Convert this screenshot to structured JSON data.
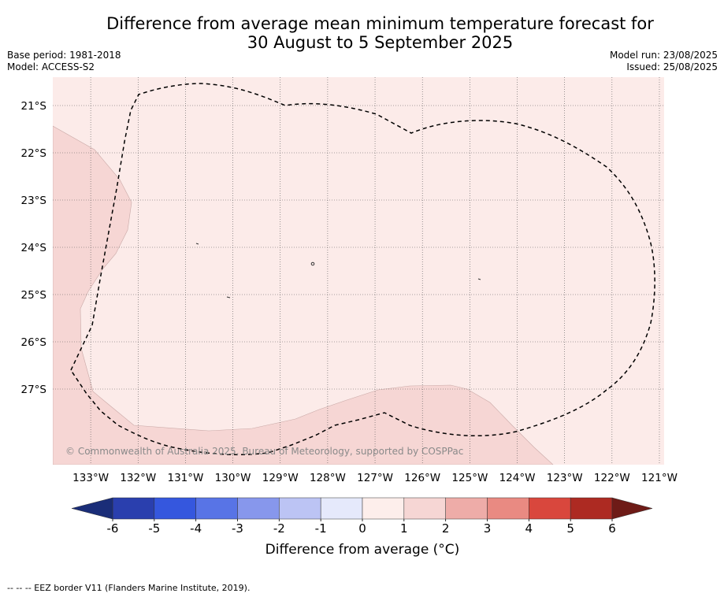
{
  "title_line1": "Difference from average mean minimum temperature forecast for",
  "title_line2": "30 August to 5 September 2025",
  "base_period": "Base period: 1981-2018",
  "model": "Model: ACCESS-S2",
  "model_run": "Model run: 23/08/2025",
  "issued": "Issued: 25/08/2025",
  "copyright": "© Commonwealth of Australia 2025, Bureau of Meteorology, supported by COSPPac",
  "footer": "-- -- -- EEZ border V11 (Flanders Marine Institute, 2019).",
  "map": {
    "lon_range": [
      -133.8,
      -120.9
    ],
    "lat_range": [
      -28.6,
      -20.4
    ],
    "lon_ticks": [
      "133°W",
      "132°W",
      "131°W",
      "130°W",
      "129°W",
      "128°W",
      "127°W",
      "126°W",
      "125°W",
      "124°W",
      "123°W",
      "122°W",
      "121°W"
    ],
    "lat_ticks": [
      "21°S",
      "22°S",
      "23°S",
      "24°S",
      "25°S",
      "26°S",
      "27°S"
    ],
    "anomaly_fill_main": "#fcebe9",
    "anomaly_fill_high": "#f6d6d4"
  },
  "colorbar": {
    "title": "Difference from average (°C)",
    "labels": [
      "-6",
      "-5",
      "-4",
      "-3",
      "-2",
      "-1",
      "0",
      "1",
      "2",
      "3",
      "4",
      "5",
      "6"
    ],
    "colors": [
      "#2a3fae",
      "#3557de",
      "#5874e6",
      "#8797ec",
      "#bcc4f4",
      "#e5e9fb",
      "#fdeeeb",
      "#f6d6d4",
      "#eeaca8",
      "#e98a82",
      "#d9473d",
      "#ad2a22"
    ],
    "under_color": "#1a2d78",
    "over_color": "#6e1b17"
  }
}
